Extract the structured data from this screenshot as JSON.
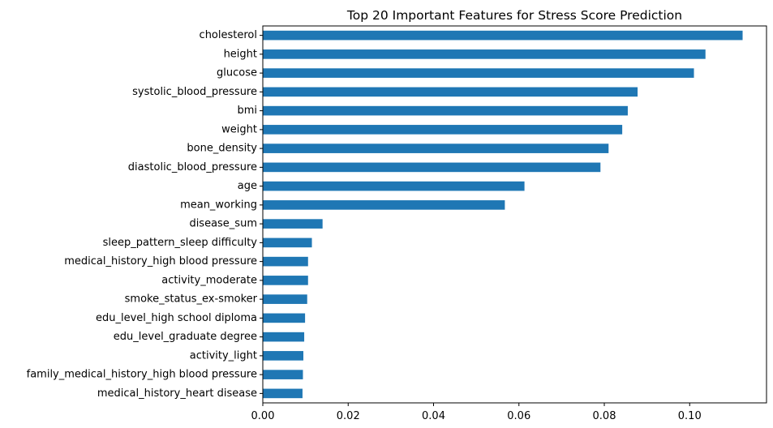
{
  "chart_data": {
    "type": "bar",
    "orientation": "horizontal",
    "title": "Top 20 Important Features for Stress Score Prediction",
    "xlabel": "",
    "ylabel": "",
    "xlim": [
      0,
      0.118
    ],
    "xticks": [
      0.0,
      0.02,
      0.04,
      0.06,
      0.08,
      0.1
    ],
    "xtick_labels": [
      "0.00",
      "0.02",
      "0.04",
      "0.06",
      "0.08",
      "0.10"
    ],
    "grid": false,
    "bar_color": "#1f77b4",
    "categories": [
      "cholesterol",
      "height",
      "glucose",
      "systolic_blood_pressure",
      "bmi",
      "weight",
      "bone_density",
      "diastolic_blood_pressure",
      "age",
      "mean_working",
      "disease_sum",
      "sleep_pattern_sleep difficulty",
      "medical_history_high blood pressure",
      "activity_moderate",
      "smoke_status_ex-smoker",
      "edu_level_high school diploma",
      "edu_level_graduate degree",
      "activity_light",
      "family_medical_history_high blood pressure",
      "medical_history_heart disease"
    ],
    "values": [
      0.1124,
      0.1037,
      0.101,
      0.0878,
      0.0855,
      0.0842,
      0.081,
      0.0791,
      0.0613,
      0.0567,
      0.014,
      0.0115,
      0.0106,
      0.0106,
      0.0104,
      0.0099,
      0.0097,
      0.0095,
      0.0094,
      0.0093
    ]
  }
}
